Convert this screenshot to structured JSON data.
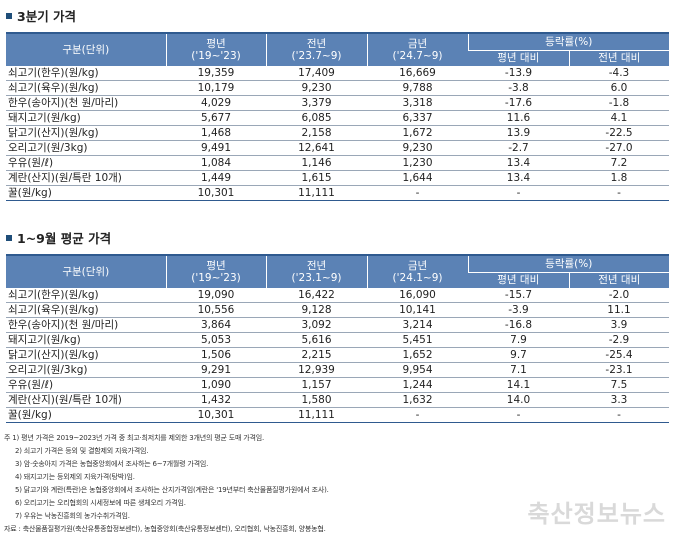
{
  "sections": [
    {
      "title": "3분기 가격",
      "header": {
        "item": "구분(단위)",
        "avg": [
          "평년",
          "('19~'23)"
        ],
        "prev": [
          "전년",
          "('23.7~9)"
        ],
        "curr": [
          "금년",
          "('24.7~9)"
        ],
        "change": "등락률(%)",
        "vs_avg": "평년 대비",
        "vs_prev": "전년 대비"
      },
      "rows": [
        {
          "item": "쇠고기(한우)(원/kg)",
          "avg": "19,359",
          "prev": "17,409",
          "curr": "16,669",
          "vs_avg": "-13.9",
          "vs_prev": "-4.3"
        },
        {
          "item": "쇠고기(육우)(원/kg)",
          "avg": "10,179",
          "prev": "9,230",
          "curr": "9,788",
          "vs_avg": "-3.8",
          "vs_prev": "6.0"
        },
        {
          "item": "한우(송아지)(천 원/마리)",
          "avg": "4,029",
          "prev": "3,379",
          "curr": "3,318",
          "vs_avg": "-17.6",
          "vs_prev": "-1.8"
        },
        {
          "item": "돼지고기(원/kg)",
          "avg": "5,677",
          "prev": "6,085",
          "curr": "6,337",
          "vs_avg": "11.6",
          "vs_prev": "4.1"
        },
        {
          "item": "닭고기(산지)(원/kg)",
          "avg": "1,468",
          "prev": "2,158",
          "curr": "1,672",
          "vs_avg": "13.9",
          "vs_prev": "-22.5"
        },
        {
          "item": "오리고기(원/3kg)",
          "avg": "9,491",
          "prev": "12,641",
          "curr": "9,230",
          "vs_avg": "-2.7",
          "vs_prev": "-27.0"
        },
        {
          "item": "우유(원/ℓ)",
          "avg": "1,084",
          "prev": "1,146",
          "curr": "1,230",
          "vs_avg": "13.4",
          "vs_prev": "7.2"
        },
        {
          "item": "계란(산지)(원/특란 10개)",
          "avg": "1,449",
          "prev": "1,615",
          "curr": "1,644",
          "vs_avg": "13.4",
          "vs_prev": "1.8"
        },
        {
          "item": "꿀(원/kg)",
          "avg": "10,301",
          "prev": "11,111",
          "curr": "-",
          "vs_avg": "-",
          "vs_prev": "-"
        }
      ]
    },
    {
      "title": "1~9월 평균 가격",
      "header": {
        "item": "구분(단위)",
        "avg": [
          "평년",
          "('19~'23)"
        ],
        "prev": [
          "전년",
          "('23.1~9)"
        ],
        "curr": [
          "금년",
          "('24.1~9)"
        ],
        "change": "등락률(%)",
        "vs_avg": "평년 대비",
        "vs_prev": "전년 대비"
      },
      "rows": [
        {
          "item": "쇠고기(한우)(원/kg)",
          "avg": "19,090",
          "prev": "16,422",
          "curr": "16,090",
          "vs_avg": "-15.7",
          "vs_prev": "-2.0"
        },
        {
          "item": "쇠고기(육우)(원/kg)",
          "avg": "10,556",
          "prev": "9,128",
          "curr": "10,141",
          "vs_avg": "-3.9",
          "vs_prev": "11.1"
        },
        {
          "item": "한우(송아지)(천 원/마리)",
          "avg": "3,864",
          "prev": "3,092",
          "curr": "3,214",
          "vs_avg": "-16.8",
          "vs_prev": "3.9"
        },
        {
          "item": "돼지고기(원/kg)",
          "avg": "5,053",
          "prev": "5,616",
          "curr": "5,451",
          "vs_avg": "7.9",
          "vs_prev": "-2.9"
        },
        {
          "item": "닭고기(산지)(원/kg)",
          "avg": "1,506",
          "prev": "2,215",
          "curr": "1,652",
          "vs_avg": "9.7",
          "vs_prev": "-25.4"
        },
        {
          "item": "오리고기(원/3kg)",
          "avg": "9,291",
          "prev": "12,939",
          "curr": "9,954",
          "vs_avg": "7.1",
          "vs_prev": "-23.1"
        },
        {
          "item": "우유(원/ℓ)",
          "avg": "1,090",
          "prev": "1,157",
          "curr": "1,244",
          "vs_avg": "14.1",
          "vs_prev": "7.5"
        },
        {
          "item": "계란(산지)(원/특란 10개)",
          "avg": "1,432",
          "prev": "1,580",
          "curr": "1,632",
          "vs_avg": "14.0",
          "vs_prev": "3.3"
        },
        {
          "item": "꿀(원/kg)",
          "avg": "10,301",
          "prev": "11,111",
          "curr": "-",
          "vs_avg": "-",
          "vs_prev": "-"
        }
      ]
    }
  ],
  "notes": [
    "주 1) 평년 가격은 2019~2023년 가격 중 최고·최저치를 제외한 3개년의 평균 도매 가격임.",
    "2) 쇠고기 가격은 등외 및 결함제외 지육가격임.",
    "3) 암·숫송아지 가격은 농협중앙회에서 조사하는 6~7개월령 가격임.",
    "4) 돼지고기는 등외제외 지육가격(탕박)임.",
    "5) 닭고기와 계란(특란)은 농협중앙회에서 조사하는 산지가격임(계란은 '19년부터 축산물품질평가원에서 조사).",
    "6) 오리고기는 오리협회의 시세정보에 따른 생체오리 가격임.",
    "7) 우유는 낙농진흥회의 농가수취가격임.",
    "자료 : 축산물품질평가원(축산유통종합정보센터), 농협중앙회(축산유통정보센터), 오리협회, 낙농진흥회, 양봉농협."
  ],
  "watermark": "축산정보뉴스",
  "colors": {
    "header_bg": "#5b82b5",
    "header_border": "#2f5a8f",
    "title_square": "#1f4e79"
  }
}
